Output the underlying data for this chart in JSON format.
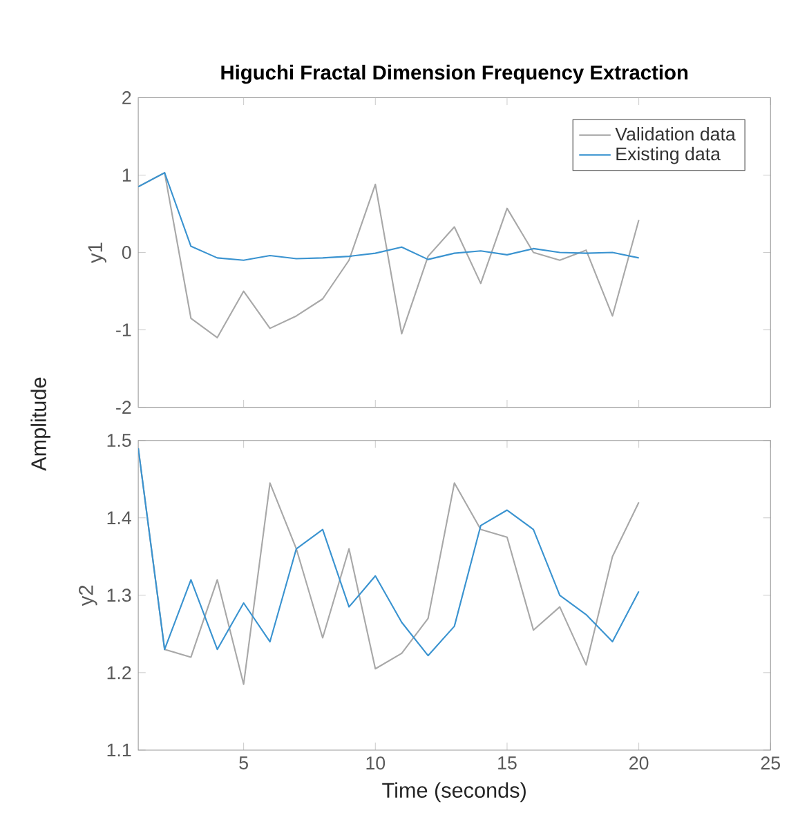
{
  "chart_data": [
    {
      "type": "line",
      "title": "Higuchi Fractal Dimension Frequency Extraction",
      "ylabel": "y1",
      "annotations": [
        "Amplitude"
      ],
      "x": [
        1,
        2,
        3,
        4,
        5,
        6,
        7,
        8,
        9,
        10,
        11,
        12,
        13,
        14,
        15,
        16,
        17,
        18,
        19,
        20
      ],
      "xlim": [
        1,
        25
      ],
      "xticks": [
        5,
        10,
        15,
        20,
        25
      ],
      "ylim": [
        -2,
        2
      ],
      "yticks": [
        -2,
        -1,
        0,
        1,
        2
      ],
      "tick_labels": "y",
      "legend": "top right",
      "line_style": "solid",
      "series": [
        {
          "name": "Validation data",
          "color": "#a8a8a8",
          "values": [
            0.85,
            1.03,
            -0.85,
            -1.1,
            -0.5,
            -0.98,
            -0.82,
            -0.6,
            -0.1,
            0.88,
            -1.05,
            -0.05,
            0.33,
            -0.4,
            0.57,
            0.0,
            -0.1,
            0.03,
            -0.82,
            0.42
          ]
        },
        {
          "name": "Existing data",
          "color": "#3a93d0",
          "values": [
            0.85,
            1.03,
            0.08,
            -0.07,
            -0.1,
            -0.04,
            -0.08,
            -0.07,
            -0.05,
            -0.01,
            0.07,
            -0.09,
            -0.01,
            0.02,
            -0.03,
            0.05,
            0.0,
            -0.01,
            0.0,
            -0.07
          ]
        }
      ]
    },
    {
      "type": "line",
      "xlabel": "Time (seconds)",
      "ylabel": "y2",
      "x": [
        1,
        2,
        3,
        4,
        5,
        6,
        7,
        8,
        9,
        10,
        11,
        12,
        13,
        14,
        15,
        16,
        17,
        18,
        19,
        20
      ],
      "xlim": [
        1,
        25
      ],
      "xticks": [
        5,
        10,
        15,
        20,
        25
      ],
      "ylim": [
        1.1,
        1.5
      ],
      "yticks": [
        1.1,
        1.2,
        1.3,
        1.4,
        1.5
      ],
      "line_style": "solid",
      "series": [
        {
          "color": "#a8a8a8",
          "values": [
            1.49,
            1.23,
            1.22,
            1.32,
            1.185,
            1.445,
            1.36,
            1.245,
            1.36,
            1.205,
            1.225,
            1.27,
            1.445,
            1.385,
            1.375,
            1.255,
            1.285,
            1.21,
            1.35,
            1.42
          ]
        },
        {
          "color": "#3a93d0",
          "values": [
            1.49,
            1.23,
            1.32,
            1.23,
            1.29,
            1.24,
            1.36,
            1.385,
            1.285,
            1.325,
            1.265,
            1.222,
            1.26,
            1.39,
            1.41,
            1.385,
            1.3,
            1.275,
            1.24,
            1.305
          ]
        }
      ]
    }
  ]
}
